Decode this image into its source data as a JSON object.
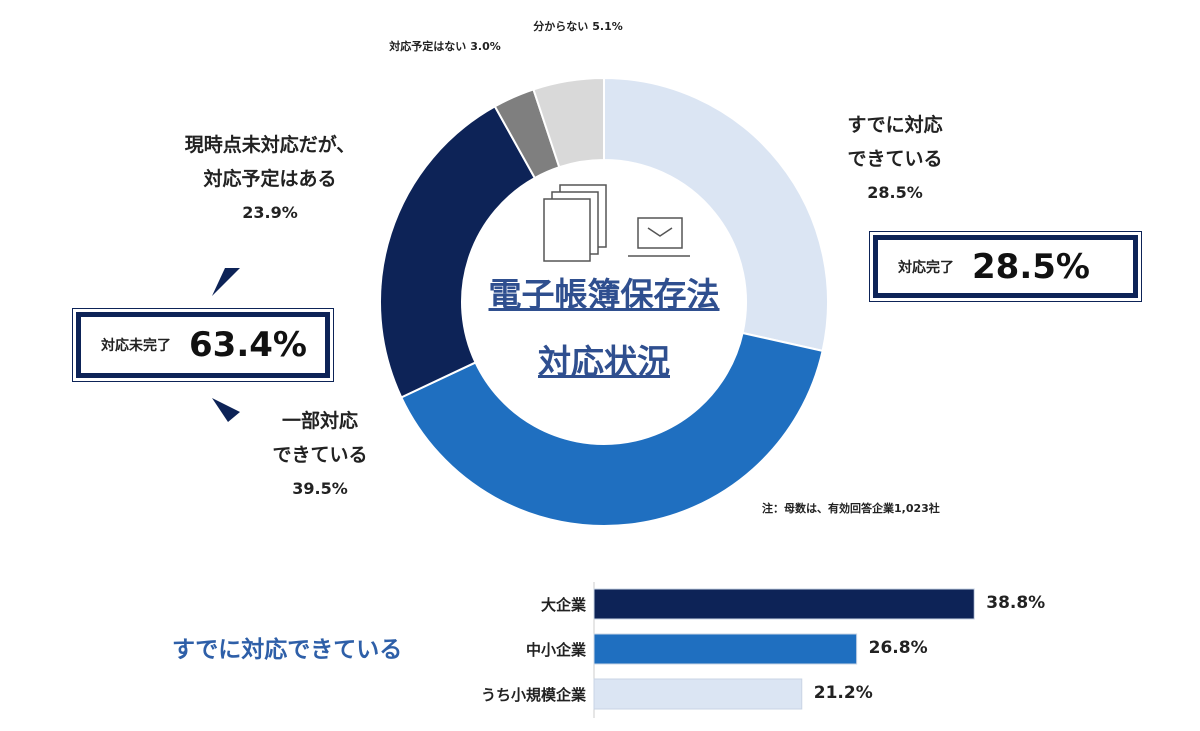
{
  "chart_data": [
    {
      "type": "donut",
      "title": "電子帳簿保存法",
      "subtitle": "対応状況",
      "categories": [
        "すでに対応\nできている",
        "一部対応\nできている",
        "現時点未対応だが、\n対応予定はある",
        "対応予定はない",
        "分からない"
      ],
      "values": [
        28.5,
        39.5,
        23.9,
        3.0,
        5.1
      ],
      "value_labels": [
        "28.5%",
        "39.5%",
        "23.9%",
        "3.0%",
        "5.1%"
      ],
      "colors": [
        "#dbe5f3",
        "#1f6fc0",
        "#0d2357",
        "#7f7f7f",
        "#d9d9d9"
      ],
      "annotations": [
        {
          "label": "対応完了",
          "text": "28.5%"
        },
        {
          "label": "対応未完了",
          "text": "63.4%"
        }
      ],
      "note": "注：母数は、有効回答企業1,023社"
    },
    {
      "type": "hbar",
      "title": "すでに対応できている",
      "categories": [
        "大企業",
        "中小企業",
        "うち小規模企業"
      ],
      "values": [
        38.8,
        26.8,
        21.2
      ],
      "value_labels": [
        "38.8%",
        "26.8%",
        "21.2%"
      ],
      "colors": [
        "#0d2357",
        "#1f6fc0",
        "#dbe5f3"
      ],
      "xlim": [
        0,
        40
      ]
    }
  ]
}
